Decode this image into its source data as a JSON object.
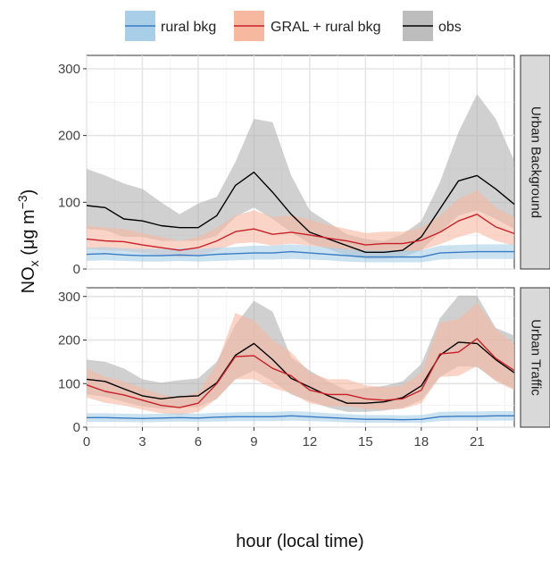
{
  "chart_data": {
    "type": "line",
    "xlabel": "hour (local time)",
    "ylabel_main": "NO",
    "ylabel_sub": "x",
    "ylabel_unit": " (μg m",
    "ylabel_exp": "−3",
    "ylabel_close": ")",
    "x": [
      0,
      1,
      2,
      3,
      4,
      5,
      6,
      7,
      8,
      9,
      10,
      11,
      12,
      13,
      14,
      15,
      16,
      17,
      18,
      19,
      20,
      21,
      22,
      23
    ],
    "xlim": [
      0,
      23
    ],
    "xticks": [
      0,
      3,
      6,
      9,
      12,
      15,
      18,
      21
    ],
    "ylim": [
      0,
      320
    ],
    "yticks": [
      0,
      100,
      200,
      300
    ],
    "legend_position": "top",
    "legend": [
      {
        "label": "rural bkg",
        "line_color": "#3a7cc4",
        "fill_color": "#a9cfe8"
      },
      {
        "label": "GRAL + rural bkg",
        "line_color": "#c8202a",
        "fill_color": "#f7b8a0"
      },
      {
        "label": "obs",
        "line_color": "#000000",
        "fill_color": "#bdbdbd"
      }
    ],
    "panels": [
      {
        "strip_label": "Urban Background",
        "series": [
          {
            "name": "obs",
            "color": "#000000",
            "fill": "#b0b0b0",
            "values": [
              95,
              92,
              75,
              72,
              65,
              62,
              62,
              80,
              125,
              145,
              115,
              82,
              55,
              45,
              35,
              25,
              25,
              28,
              48,
              90,
              132,
              140,
              120,
              97
            ],
            "lower": [
              60,
              58,
              48,
              48,
              42,
              42,
              42,
              50,
              78,
              92,
              75,
              55,
              38,
              30,
              20,
              15,
              15,
              18,
              28,
              55,
              80,
              88,
              75,
              60
            ],
            "upper": [
              150,
              140,
              128,
              120,
              100,
              82,
              98,
              108,
              160,
              225,
              220,
              140,
              88,
              70,
              52,
              45,
              42,
              52,
              72,
              130,
              205,
              262,
              225,
              162
            ]
          },
          {
            "name": "GRAL + rural bkg",
            "color": "#c8202a",
            "fill": "#f7b8a0",
            "values": [
              45,
              42,
              41,
              36,
              32,
              28,
              32,
              42,
              56,
              60,
              52,
              55,
              51,
              46,
              42,
              36,
              38,
              38,
              43,
              55,
              72,
              82,
              63,
              53
            ],
            "lower": [
              30,
              28,
              27,
              24,
              21,
              18,
              20,
              28,
              38,
              40,
              35,
              38,
              35,
              32,
              28,
              24,
              25,
              25,
              28,
              37,
              48,
              55,
              42,
              35
            ],
            "upper": [
              65,
              62,
              60,
              54,
              48,
              42,
              48,
              62,
              80,
              88,
              78,
              80,
              74,
              66,
              60,
              54,
              56,
              56,
              62,
              80,
              105,
              118,
              92,
              78
            ]
          },
          {
            "name": "rural bkg",
            "color": "#3a7cc4",
            "fill": "#a9cfe8",
            "values": [
              22,
              23,
              21,
              20,
              20,
              21,
              20,
              22,
              23,
              24,
              24,
              26,
              24,
              22,
              20,
              18,
              18,
              18,
              18,
              24,
              25,
              26,
              26,
              26
            ],
            "lower": [
              12,
              13,
              12,
              11,
              11,
              12,
              11,
              12,
              13,
              14,
              14,
              15,
              14,
              13,
              11,
              10,
              10,
              10,
              10,
              14,
              15,
              15,
              15,
              15
            ],
            "upper": [
              32,
              33,
              31,
              30,
              30,
              31,
              30,
              32,
              33,
              35,
              35,
              37,
              35,
              32,
              30,
              28,
              28,
              28,
              28,
              35,
              36,
              37,
              37,
              37
            ]
          }
        ]
      },
      {
        "strip_label": "Urban Traffic",
        "series": [
          {
            "name": "obs",
            "color": "#000000",
            "fill": "#b0b0b0",
            "values": [
              110,
              105,
              88,
              72,
              65,
              70,
              72,
              102,
              165,
              192,
              155,
              112,
              92,
              72,
              55,
              55,
              58,
              68,
              95,
              165,
              195,
              192,
              155,
              125
            ],
            "lower": [
              75,
              70,
              58,
              48,
              42,
              45,
              46,
              65,
              110,
              130,
              105,
              75,
              60,
              45,
              35,
              35,
              38,
              44,
              62,
              115,
              140,
              138,
              108,
              88
            ],
            "upper": [
              155,
              150,
              135,
              110,
              102,
              108,
              112,
              150,
              235,
              290,
              265,
              160,
              130,
              105,
              85,
              90,
              95,
              105,
              145,
              250,
              302,
              302,
              228,
              210
            ]
          },
          {
            "name": "GRAL + rural bkg",
            "color": "#c8202a",
            "fill": "#f7b8a0",
            "values": [
              97,
              82,
              74,
              62,
              50,
              45,
              55,
              100,
              162,
              164,
              135,
              118,
              85,
              75,
              75,
              65,
              62,
              65,
              85,
              168,
              172,
              203,
              158,
              130
            ],
            "lower": [
              68,
              56,
              50,
              40,
              32,
              28,
              35,
              65,
              110,
              110,
              90,
              78,
              55,
              48,
              48,
              42,
              40,
              42,
              55,
              115,
              118,
              140,
              105,
              85
            ],
            "upper": [
              135,
              115,
              105,
              90,
              75,
              68,
              80,
              145,
              262,
              245,
              200,
              172,
              125,
              110,
              110,
              96,
              92,
              96,
              125,
              240,
              248,
              285,
              225,
              190
            ]
          },
          {
            "name": "rural bkg",
            "color": "#3a7cc4",
            "fill": "#a9cfe8",
            "values": [
              22,
              22,
              21,
              20,
              21,
              22,
              21,
              23,
              24,
              24,
              24,
              26,
              24,
              22,
              20,
              18,
              18,
              17,
              18,
              24,
              25,
              25,
              26,
              26
            ],
            "lower": [
              12,
              12,
              12,
              11,
              12,
              13,
              12,
              13,
              14,
              14,
              14,
              15,
              14,
              13,
              11,
              10,
              10,
              10,
              10,
              14,
              15,
              15,
              15,
              15
            ],
            "upper": [
              32,
              32,
              31,
              30,
              31,
              32,
              31,
              33,
              34,
              35,
              35,
              37,
              35,
              32,
              30,
              28,
              28,
              27,
              28,
              35,
              36,
              36,
              37,
              37
            ]
          }
        ]
      }
    ]
  }
}
